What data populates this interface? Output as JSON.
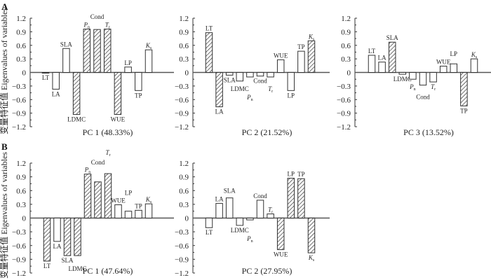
{
  "figure": {
    "panel_letters": [
      "A",
      "B"
    ],
    "ylabel": "变量特征值 Eigenvalues of variables"
  },
  "chart_data": [
    {
      "type": "bar",
      "panel": "A",
      "title": "PC 1 (48.33%)",
      "ylabel": "变量特征值 Eigenvalues of variables",
      "ylim": [
        -1.2,
        1.2
      ],
      "yticks": [
        "1.2",
        "0.9",
        "0.6",
        "0.3",
        "0",
        "−0.3",
        "−0.6",
        "−0.9",
        "−1.2"
      ],
      "categories": [
        "LT",
        "LA",
        "SLA",
        "LDMC",
        "Pn",
        "Cond",
        "Tr",
        "WUE",
        "LP",
        "TP",
        "Ks"
      ],
      "values": [
        -0.01,
        -0.37,
        0.53,
        -0.93,
        0.96,
        0.95,
        0.96,
        -0.93,
        0.12,
        -0.4,
        0.5
      ],
      "hatched": [
        false,
        false,
        false,
        true,
        true,
        true,
        true,
        true,
        false,
        false,
        false
      ]
    },
    {
      "type": "bar",
      "panel": "A",
      "title": "PC 2 (21.52%)",
      "ylim": [
        -1.2,
        1.2
      ],
      "yticks": [
        "1.2",
        "0.9",
        "0.6",
        "0.3",
        "0",
        "−0.3",
        "−0.6",
        "−0.9",
        "−1.2"
      ],
      "categories": [
        "LT",
        "LA",
        "SLA",
        "LDMC",
        "Pn",
        "Cond",
        "Tr",
        "WUE",
        "LP",
        "TP",
        "Ks"
      ],
      "values": [
        0.88,
        -0.76,
        -0.06,
        -0.19,
        -0.1,
        -0.08,
        -0.1,
        0.28,
        -0.4,
        0.47,
        0.7
      ],
      "hatched": [
        true,
        true,
        false,
        false,
        false,
        false,
        false,
        false,
        false,
        false,
        true
      ]
    },
    {
      "type": "bar",
      "panel": "A",
      "title": "PC 3 (13.52%)",
      "ylim": [
        -1.2,
        1.2
      ],
      "yticks": [
        "1.2",
        "0.9",
        "0.6",
        "0.3",
        "0",
        "−0.3",
        "−0.6",
        "−0.9",
        "−1.2"
      ],
      "categories": [
        "LT",
        "LA",
        "SLA",
        "LDMC",
        "Pn",
        "Cond",
        "Tr",
        "WUE",
        "LP",
        "TP",
        "Ks"
      ],
      "values": [
        0.38,
        0.23,
        0.67,
        -0.04,
        -0.15,
        -0.28,
        -0.21,
        0.14,
        0.19,
        -0.74,
        0.3
      ],
      "hatched": [
        false,
        false,
        true,
        false,
        false,
        false,
        false,
        false,
        false,
        true,
        false
      ]
    },
    {
      "type": "bar",
      "panel": "B",
      "title": "PC 1 (47.64%)",
      "ylabel": "变量特征值 Eigenvalues of variables",
      "ylim": [
        -1.2,
        1.2
      ],
      "yticks": [
        "1.2",
        "0.9",
        "0.6",
        "0.3",
        "0",
        "−0.3",
        "−0.6",
        "−0.9",
        "−1.2"
      ],
      "categories": [
        "LT",
        "LA",
        "SLA",
        "LDMC",
        "Pn",
        "Cond",
        "Tr",
        "WUE",
        "LP",
        "TP",
        "Ks"
      ],
      "values": [
        -0.94,
        -0.51,
        -0.82,
        -0.82,
        0.96,
        0.79,
        0.97,
        0.29,
        0.15,
        0.17,
        0.31
      ],
      "hatched": [
        true,
        false,
        true,
        true,
        true,
        true,
        true,
        false,
        false,
        false,
        false
      ]
    },
    {
      "type": "bar",
      "panel": "B",
      "title": "PC 2 (27.95%)",
      "ylim": [
        -1.2,
        1.2
      ],
      "yticks": [
        "1.2",
        "0.9",
        "0.6",
        "0.3",
        "0",
        "−0.3",
        "−0.6",
        "−0.9",
        "−1.2"
      ],
      "categories": [
        "LT",
        "LA",
        "SLA",
        "LDMC",
        "Pn",
        "Cond",
        "Tr",
        "WUE",
        "LP",
        "TP",
        "Ks"
      ],
      "values": [
        -0.21,
        0.32,
        0.44,
        -0.16,
        -0.04,
        0.39,
        0.09,
        -0.69,
        0.87,
        0.86,
        -0.76
      ],
      "hatched": [
        false,
        false,
        false,
        false,
        false,
        false,
        false,
        true,
        true,
        true,
        true
      ]
    }
  ]
}
